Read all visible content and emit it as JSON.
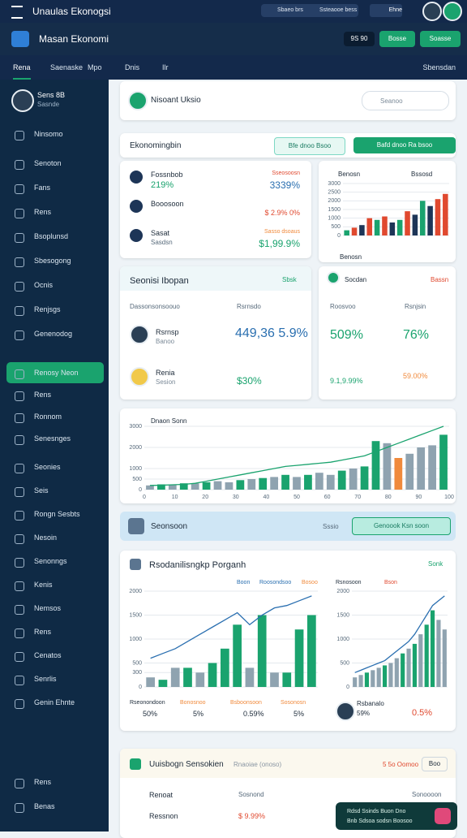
{
  "topbar": {
    "title": "Unaulas Ekonogsi",
    "search": "Sbaeo brs",
    "button": "Ssteaooe bess",
    "badge": "Ehne"
  },
  "header": {
    "title": "Masan Ekonomi",
    "code": "9S 90",
    "btn1": "Bosse",
    "btn2": "Soasse"
  },
  "tabs": [
    "Rena",
    "Saenaske",
    "Mpo",
    "Dnis",
    "Ilr"
  ],
  "tab_right": "Sbensdan",
  "profile": {
    "name": "Sens 8B",
    "sub": "Sasnde"
  },
  "sidebar": {
    "group1": [
      "Ninsomo"
    ],
    "group2": [
      "Senoton",
      "Fans",
      "Rens",
      "Bsoplunsd",
      "Sbesogong",
      "Ocnis",
      "Renjsgs",
      "Genenodog"
    ],
    "active": "Renosy Neon",
    "group3": [
      "Rens",
      "Ronnom",
      "Senesnges"
    ],
    "group4": [
      "Seonies",
      "Seis",
      "Rongn Sesbts",
      "Nesoin",
      "Senonngs",
      "Kenis",
      "Nemsos",
      "Rens",
      "Cenatos",
      "Senrlis",
      "Genin Ehnte"
    ],
    "bottom": [
      "Rens",
      "Benas"
    ]
  },
  "search_card": {
    "title": "Nisoant Uksio",
    "search": "Seanoo"
  },
  "section": {
    "title": "Ekonomingbin",
    "btn1": "Bfe dnoo Bsoo",
    "btn2": "Bafd dnoo Ra bsoo"
  },
  "list_card": {
    "rows": [
      {
        "name": "Fossnbob",
        "value": "219%",
        "label": "Sseosoosn",
        "right": "3339%"
      },
      {
        "name": "Booosoon",
        "value": "",
        "label": "",
        "right": "$ 2.9% 0%"
      },
      {
        "name": "Sasat",
        "value": "Sasdsn",
        "label": "Sasso dsoaus",
        "right": "$1,99.9%"
      }
    ]
  },
  "small_chart": {
    "title": "Benosn",
    "right": "Bssosd",
    "footer": "Benosn"
  },
  "stat_card": {
    "title": "Seonisi Ibopan",
    "tag": "Sbsk",
    "col1": "Dassonsonsoouo",
    "col2": "Rsrnsdo",
    "rows": [
      {
        "name": "Rsrnsp",
        "sub": "Banoo",
        "value": "449,36 5.9%"
      },
      {
        "name": "Renia",
        "sub": "Sesion",
        "value": "$30%"
      }
    ]
  },
  "pct_card": {
    "title": "Socdan",
    "tag": "Bassn",
    "l1": "Roosvoo",
    "l2": "Rsnjsin",
    "v1": "509%",
    "v2": "76%",
    "s1": "9.1,9.99%",
    "s2": "59.00%"
  },
  "wide_chart": {
    "title": "Dnaon Sonn"
  },
  "banner": {
    "title": "Seonsoon",
    "tag": "Sssio",
    "button": "Genoook Ksn soon"
  },
  "growth_card": {
    "title": "Rsodanilisngkp Porganh",
    "tag": "Sonk",
    "legend": [
      "Boon",
      "Roosondsoo",
      "Bosoo",
      "Rsnosoon",
      "Bson"
    ],
    "stats": [
      {
        "name": "Rseonondoon",
        "value": "50%"
      },
      {
        "name": "Bonosnoo",
        "value": "5%"
      },
      {
        "name": "Bsboonsoon",
        "value": "0.59%"
      },
      {
        "name": "Sosonosn",
        "value": "5%"
      }
    ],
    "right_name": "Rsbanalo",
    "right_v1": "59%",
    "right_v2": "0.5%"
  },
  "bottom_card": {
    "title": "Uuisbogn Sensokien",
    "sub": "Rnaoiae (onoso)",
    "right": "5 5o Oomoo",
    "btn": "Boo",
    "rows": [
      {
        "name": "Renoat",
        "mid": "Sosnond",
        "right": "Sonoooon"
      },
      {
        "name": "Ressnon",
        "mid": "$ 9.99%",
        "right": ""
      }
    ]
  },
  "toast": {
    "l1": "Rdsd Ssinds Buon Dno",
    "l2": "Bnb Sdsoa sodsn Boosoo"
  },
  "charts": [
    {
      "type": "bar",
      "ylim": [
        0,
        3000
      ],
      "yticks": [
        0,
        500,
        1000,
        1500,
        2000,
        2500,
        3000
      ],
      "values": [
        300,
        450,
        600,
        1000,
        900,
        1100,
        750,
        900,
        1400,
        1200,
        2000,
        1700,
        2100,
        2400
      ],
      "colors": [
        "#1aa36e",
        "#e0492f",
        "#1d3557",
        "#e0492f",
        "#1aa36e",
        "#e0492f",
        "#1d3557",
        "#1aa36e",
        "#e0492f",
        "#1d3557",
        "#1aa36e",
        "#1d3557",
        "#e0492f",
        "#e0492f"
      ]
    },
    {
      "type": "bar",
      "ylim": [
        0,
        3000
      ],
      "yticks": [
        0,
        500,
        1000,
        2000,
        3000
      ],
      "xlabels": [
        "0",
        "10",
        "20",
        "30",
        "40",
        "50",
        "60",
        "70",
        "80",
        "90",
        "100"
      ],
      "values": [
        200,
        250,
        250,
        300,
        300,
        350,
        400,
        350,
        450,
        500,
        550,
        600,
        700,
        600,
        700,
        800,
        700,
        900,
        1000,
        1100,
        2300,
        2200,
        1500,
        1700,
        2000,
        2100,
        2600
      ],
      "colors": [
        "#8fa3b0",
        "#1aa36e",
        "#8fa3b0",
        "#1aa36e",
        "#8fa3b0",
        "#1aa36e",
        "#8fa3b0",
        "#8fa3b0",
        "#1aa36e",
        "#8fa3b0",
        "#1aa36e",
        "#8fa3b0",
        "#1aa36e",
        "#8fa3b0",
        "#1aa36e",
        "#8fa3b0",
        "#8fa3b0",
        "#1aa36e",
        "#8fa3b0",
        "#1aa36e",
        "#1aa36e",
        "#8fa3b0",
        "#f08a3c",
        "#8fa3b0",
        "#8fa3b0",
        "#8fa3b0",
        "#1aa36e"
      ],
      "line": [
        200,
        210,
        230,
        250,
        300,
        400,
        500,
        600,
        700,
        800,
        900,
        1000,
        1100,
        1150,
        1200,
        1250,
        1300,
        1400,
        1500,
        1600,
        1800,
        2000,
        2200,
        2400,
        2600,
        2800,
        3000
      ],
      "line_color": "#1aa36e"
    },
    {
      "type": "bar",
      "ylim": [
        0,
        2000
      ],
      "yticks": [
        0,
        300,
        500,
        1000,
        1500,
        2000
      ],
      "values": [
        200,
        150,
        400,
        400,
        300,
        500,
        800,
        1300,
        400,
        1500,
        300,
        300,
        1200,
        1500
      ],
      "colors": [
        "#8fa3b0",
        "#1aa36e",
        "#8fa3b0",
        "#1aa36e",
        "#8fa3b0",
        "#1aa36e",
        "#1aa36e",
        "#1aa36e",
        "#8fa3b0",
        "#1aa36e",
        "#8fa3b0",
        "#1aa36e",
        "#1aa36e",
        "#1aa36e"
      ],
      "line": [
        600,
        700,
        800,
        950,
        1100,
        1250,
        1400,
        1550,
        1300,
        1500,
        1650,
        1700,
        1800,
        1900
      ],
      "line_color": "#2a6fb0"
    },
    {
      "type": "bar",
      "ylim": [
        0,
        2000
      ],
      "yticks": [
        0,
        500,
        1000,
        1500,
        2000
      ],
      "values": [
        200,
        250,
        300,
        350,
        400,
        450,
        500,
        600,
        700,
        800,
        900,
        1100,
        1300,
        1600,
        1400,
        1200
      ],
      "colors": [
        "#8fa3b0",
        "#8fa3b0",
        "#1aa36e",
        "#8fa3b0",
        "#8fa3b0",
        "#1aa36e",
        "#8fa3b0",
        "#8fa3b0",
        "#1aa36e",
        "#8fa3b0",
        "#1aa36e",
        "#8fa3b0",
        "#1aa36e",
        "#1aa36e",
        "#8fa3b0",
        "#8fa3b0"
      ],
      "line": [
        300,
        350,
        400,
        450,
        500,
        550,
        650,
        750,
        850,
        950,
        1100,
        1300,
        1500,
        1700,
        1800,
        1900
      ],
      "line_color": "#2a6fb0"
    }
  ]
}
